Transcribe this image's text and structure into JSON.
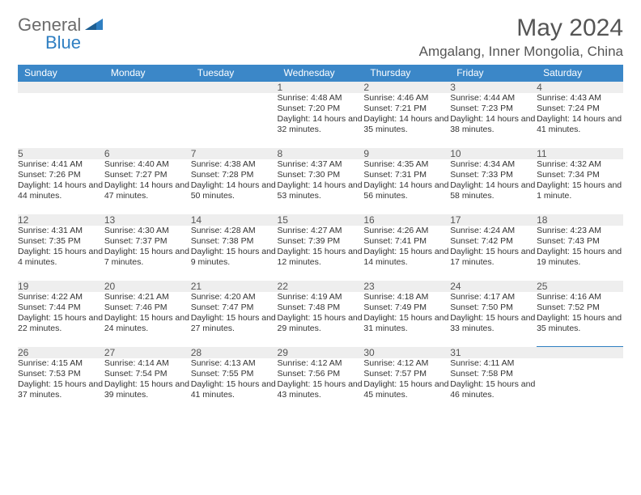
{
  "logo": {
    "part1": "General",
    "part2": "Blue"
  },
  "title": "May 2024",
  "location": "Amgalang, Inner Mongolia, China",
  "colors": {
    "header_bg": "#3b87c8",
    "header_text": "#ffffff",
    "daynum_bg": "#eeeeee",
    "rule": "#2f7fc2",
    "logo_gray": "#6b6b6b",
    "logo_blue": "#2f7fc2"
  },
  "weekdays": [
    "Sunday",
    "Monday",
    "Tuesday",
    "Wednesday",
    "Thursday",
    "Friday",
    "Saturday"
  ],
  "weeks": [
    [
      null,
      null,
      null,
      {
        "n": "1",
        "sr": "4:48 AM",
        "ss": "7:20 PM",
        "dl": "14 hours and 32 minutes."
      },
      {
        "n": "2",
        "sr": "4:46 AM",
        "ss": "7:21 PM",
        "dl": "14 hours and 35 minutes."
      },
      {
        "n": "3",
        "sr": "4:44 AM",
        "ss": "7:23 PM",
        "dl": "14 hours and 38 minutes."
      },
      {
        "n": "4",
        "sr": "4:43 AM",
        "ss": "7:24 PM",
        "dl": "14 hours and 41 minutes."
      }
    ],
    [
      {
        "n": "5",
        "sr": "4:41 AM",
        "ss": "7:26 PM",
        "dl": "14 hours and 44 minutes."
      },
      {
        "n": "6",
        "sr": "4:40 AM",
        "ss": "7:27 PM",
        "dl": "14 hours and 47 minutes."
      },
      {
        "n": "7",
        "sr": "4:38 AM",
        "ss": "7:28 PM",
        "dl": "14 hours and 50 minutes."
      },
      {
        "n": "8",
        "sr": "4:37 AM",
        "ss": "7:30 PM",
        "dl": "14 hours and 53 minutes."
      },
      {
        "n": "9",
        "sr": "4:35 AM",
        "ss": "7:31 PM",
        "dl": "14 hours and 56 minutes."
      },
      {
        "n": "10",
        "sr": "4:34 AM",
        "ss": "7:33 PM",
        "dl": "14 hours and 58 minutes."
      },
      {
        "n": "11",
        "sr": "4:32 AM",
        "ss": "7:34 PM",
        "dl": "15 hours and 1 minute."
      }
    ],
    [
      {
        "n": "12",
        "sr": "4:31 AM",
        "ss": "7:35 PM",
        "dl": "15 hours and 4 minutes."
      },
      {
        "n": "13",
        "sr": "4:30 AM",
        "ss": "7:37 PM",
        "dl": "15 hours and 7 minutes."
      },
      {
        "n": "14",
        "sr": "4:28 AM",
        "ss": "7:38 PM",
        "dl": "15 hours and 9 minutes."
      },
      {
        "n": "15",
        "sr": "4:27 AM",
        "ss": "7:39 PM",
        "dl": "15 hours and 12 minutes."
      },
      {
        "n": "16",
        "sr": "4:26 AM",
        "ss": "7:41 PM",
        "dl": "15 hours and 14 minutes."
      },
      {
        "n": "17",
        "sr": "4:24 AM",
        "ss": "7:42 PM",
        "dl": "15 hours and 17 minutes."
      },
      {
        "n": "18",
        "sr": "4:23 AM",
        "ss": "7:43 PM",
        "dl": "15 hours and 19 minutes."
      }
    ],
    [
      {
        "n": "19",
        "sr": "4:22 AM",
        "ss": "7:44 PM",
        "dl": "15 hours and 22 minutes."
      },
      {
        "n": "20",
        "sr": "4:21 AM",
        "ss": "7:46 PM",
        "dl": "15 hours and 24 minutes."
      },
      {
        "n": "21",
        "sr": "4:20 AM",
        "ss": "7:47 PM",
        "dl": "15 hours and 27 minutes."
      },
      {
        "n": "22",
        "sr": "4:19 AM",
        "ss": "7:48 PM",
        "dl": "15 hours and 29 minutes."
      },
      {
        "n": "23",
        "sr": "4:18 AM",
        "ss": "7:49 PM",
        "dl": "15 hours and 31 minutes."
      },
      {
        "n": "24",
        "sr": "4:17 AM",
        "ss": "7:50 PM",
        "dl": "15 hours and 33 minutes."
      },
      {
        "n": "25",
        "sr": "4:16 AM",
        "ss": "7:52 PM",
        "dl": "15 hours and 35 minutes."
      }
    ],
    [
      {
        "n": "26",
        "sr": "4:15 AM",
        "ss": "7:53 PM",
        "dl": "15 hours and 37 minutes."
      },
      {
        "n": "27",
        "sr": "4:14 AM",
        "ss": "7:54 PM",
        "dl": "15 hours and 39 minutes."
      },
      {
        "n": "28",
        "sr": "4:13 AM",
        "ss": "7:55 PM",
        "dl": "15 hours and 41 minutes."
      },
      {
        "n": "29",
        "sr": "4:12 AM",
        "ss": "7:56 PM",
        "dl": "15 hours and 43 minutes."
      },
      {
        "n": "30",
        "sr": "4:12 AM",
        "ss": "7:57 PM",
        "dl": "15 hours and 45 minutes."
      },
      {
        "n": "31",
        "sr": "4:11 AM",
        "ss": "7:58 PM",
        "dl": "15 hours and 46 minutes."
      },
      null
    ]
  ],
  "labels": {
    "sunrise": "Sunrise:",
    "sunset": "Sunset:",
    "daylight": "Daylight:"
  }
}
